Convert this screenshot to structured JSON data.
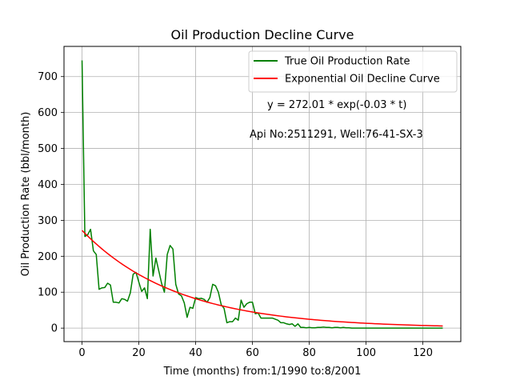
{
  "chart_data": {
    "type": "line",
    "title": "Oil Production Decline Curve",
    "xlabel": "Time (months) from:1/1990 to:8/2001",
    "ylabel": "Oil Production Rate (bbl/month)",
    "xlim": [
      -6.35,
      133.35
    ],
    "ylim": [
      -37.5,
      784
    ],
    "xticks": [
      0,
      20,
      40,
      60,
      80,
      100,
      120
    ],
    "yticks": [
      0,
      100,
      200,
      300,
      400,
      500,
      600,
      700
    ],
    "grid": true,
    "legend_position": "top-right",
    "annotations": [
      "y = 272.01 * exp(-0.03 * t)",
      "Api No:2511291, Well:76-41-SX-3"
    ],
    "series": [
      {
        "name": "True Oil Production Rate",
        "color": "#008000",
        "x": [
          0,
          1,
          2,
          3,
          4,
          5,
          6,
          7,
          8,
          9,
          10,
          11,
          12,
          13,
          14,
          15,
          16,
          17,
          18,
          19,
          20,
          21,
          22,
          23,
          24,
          25,
          26,
          27,
          28,
          29,
          30,
          31,
          32,
          33,
          34,
          35,
          36,
          37,
          38,
          39,
          40,
          41,
          42,
          43,
          44,
          45,
          46,
          47,
          48,
          49,
          50,
          51,
          52,
          53,
          54,
          55,
          56,
          57,
          58,
          59,
          60,
          61,
          62,
          63,
          64,
          65,
          66,
          67,
          68,
          69,
          70,
          71,
          72,
          73,
          74,
          75,
          76,
          77,
          78,
          79,
          80,
          81,
          82,
          83,
          84,
          85,
          86,
          87,
          88,
          89,
          90,
          91,
          92,
          93,
          94,
          95,
          96,
          97,
          98,
          99,
          100,
          101,
          102,
          103,
          104,
          105,
          106,
          107,
          108,
          109,
          110,
          111,
          112,
          113,
          114,
          115,
          116,
          117,
          118,
          119,
          120,
          121,
          122,
          123,
          124,
          125,
          126,
          127
        ],
        "y": [
          745,
          255,
          260,
          275,
          215,
          205,
          108,
          112,
          113,
          125,
          120,
          72,
          72,
          70,
          82,
          80,
          75,
          98,
          150,
          155,
          128,
          102,
          112,
          82,
          275,
          145,
          195,
          160,
          125,
          100,
          205,
          230,
          220,
          122,
          95,
          90,
          70,
          30,
          58,
          55,
          85,
          82,
          83,
          80,
          72,
          85,
          122,
          118,
          100,
          65,
          55,
          15,
          18,
          18,
          28,
          22,
          78,
          58,
          68,
          72,
          72,
          40,
          42,
          28,
          28,
          28,
          28,
          28,
          25,
          22,
          15,
          15,
          12,
          10,
          12,
          5,
          12,
          2,
          2,
          1,
          2,
          1,
          1,
          2,
          2,
          3,
          2,
          2,
          1,
          2,
          2,
          1,
          2,
          1,
          1,
          0,
          0,
          0,
          0,
          0,
          0,
          0,
          0,
          0,
          0,
          0,
          0,
          0,
          0,
          0,
          0,
          0,
          0,
          0,
          0,
          0,
          0,
          0,
          0,
          0,
          0,
          0,
          0,
          0,
          0,
          0,
          0,
          0
        ]
      },
      {
        "name": "Exponential Oil Decline Curve",
        "color": "#ff0000",
        "function": "272.01*exp(-0.03*t)",
        "x_range": [
          0,
          127
        ]
      }
    ]
  }
}
